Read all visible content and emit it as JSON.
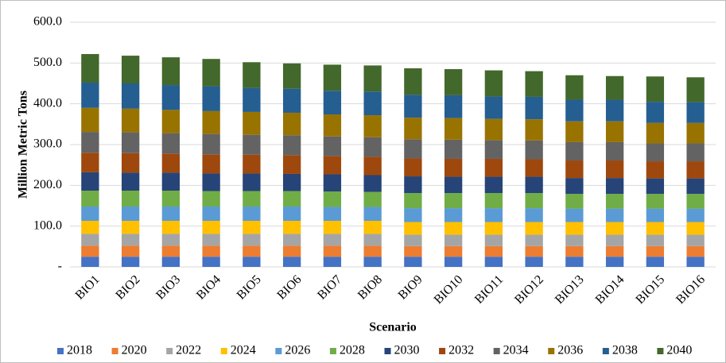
{
  "chart_data": {
    "type": "stacked_bar",
    "y_label": "Million Metric Tons",
    "x_label": "Scenario",
    "categories": [
      "BIO1",
      "BIO2",
      "BIO3",
      "BIO4",
      "BIO5",
      "BIO6",
      "BIO7",
      "BIO8",
      "BIO9",
      "BIO10",
      "BIO11",
      "BIO12",
      "BIO13",
      "BIO14",
      "BIO15",
      "BIO16"
    ],
    "series": [
      {
        "name": "2018",
        "color": "#4472c4",
        "values": [
          25,
          25,
          25,
          25,
          25,
          25,
          25,
          25,
          25,
          25,
          25,
          25,
          25,
          25,
          25,
          25
        ]
      },
      {
        "name": "2020",
        "color": "#ed7d31",
        "values": [
          27,
          27,
          27,
          27,
          27,
          27,
          27,
          27,
          26,
          26,
          26,
          26,
          26,
          26,
          26,
          26
        ]
      },
      {
        "name": "2022",
        "color": "#a5a5a5",
        "values": [
          29,
          29,
          29,
          29,
          29,
          29,
          29,
          29,
          28,
          28,
          28,
          28,
          28,
          28,
          28,
          28
        ]
      },
      {
        "name": "2024",
        "color": "#ffc000",
        "values": [
          32,
          32,
          32,
          32,
          32,
          32,
          32,
          32,
          31,
          31,
          31,
          31,
          31,
          31,
          31,
          31
        ]
      },
      {
        "name": "2026",
        "color": "#5b9bd5",
        "values": [
          35,
          35,
          35,
          35,
          35,
          35,
          34,
          34,
          34,
          34,
          34,
          34,
          33,
          33,
          33,
          33
        ]
      },
      {
        "name": "2028",
        "color": "#70ad47",
        "values": [
          39,
          39,
          39,
          38,
          38,
          38,
          38,
          37,
          37,
          37,
          37,
          37,
          36,
          36,
          36,
          36
        ]
      },
      {
        "name": "2030",
        "color": "#264478",
        "values": [
          45,
          44,
          44,
          43,
          43,
          42,
          42,
          41,
          41,
          40,
          40,
          40,
          39,
          39,
          38,
          38
        ]
      },
      {
        "name": "2032",
        "color": "#9e480e",
        "values": [
          48,
          48,
          47,
          47,
          46,
          46,
          45,
          45,
          44,
          44,
          44,
          43,
          43,
          43,
          42,
          42
        ]
      },
      {
        "name": "2034",
        "color": "#636363",
        "values": [
          51,
          51,
          50,
          50,
          49,
          49,
          48,
          48,
          47,
          47,
          46,
          46,
          45,
          45,
          44,
          44
        ]
      },
      {
        "name": "2036",
        "color": "#997300",
        "values": [
          59,
          58,
          57,
          56,
          56,
          55,
          54,
          54,
          53,
          53,
          52,
          52,
          51,
          51,
          50,
          50
        ]
      },
      {
        "name": "2038",
        "color": "#255e91",
        "values": [
          62,
          62,
          61,
          61,
          59,
          59,
          58,
          58,
          56,
          56,
          55,
          55,
          53,
          53,
          52,
          51
        ]
      },
      {
        "name": "2040",
        "color": "#43682b",
        "values": [
          70,
          68,
          68,
          67,
          63,
          62,
          64,
          64,
          65,
          64,
          64,
          63,
          60,
          58,
          62,
          61
        ]
      }
    ],
    "ylim": [
      0,
      600
    ],
    "yticks": [
      {
        "value": 0,
        "label": "-"
      },
      {
        "value": 100,
        "label": "100.0"
      },
      {
        "value": 200,
        "label": "200.0"
      },
      {
        "value": 300,
        "label": "300.0"
      },
      {
        "value": 400,
        "label": "400.0"
      },
      {
        "value": 500,
        "label": "500.0"
      },
      {
        "value": 600,
        "label": "600.0"
      }
    ],
    "grid": true,
    "legend": "bottom"
  }
}
